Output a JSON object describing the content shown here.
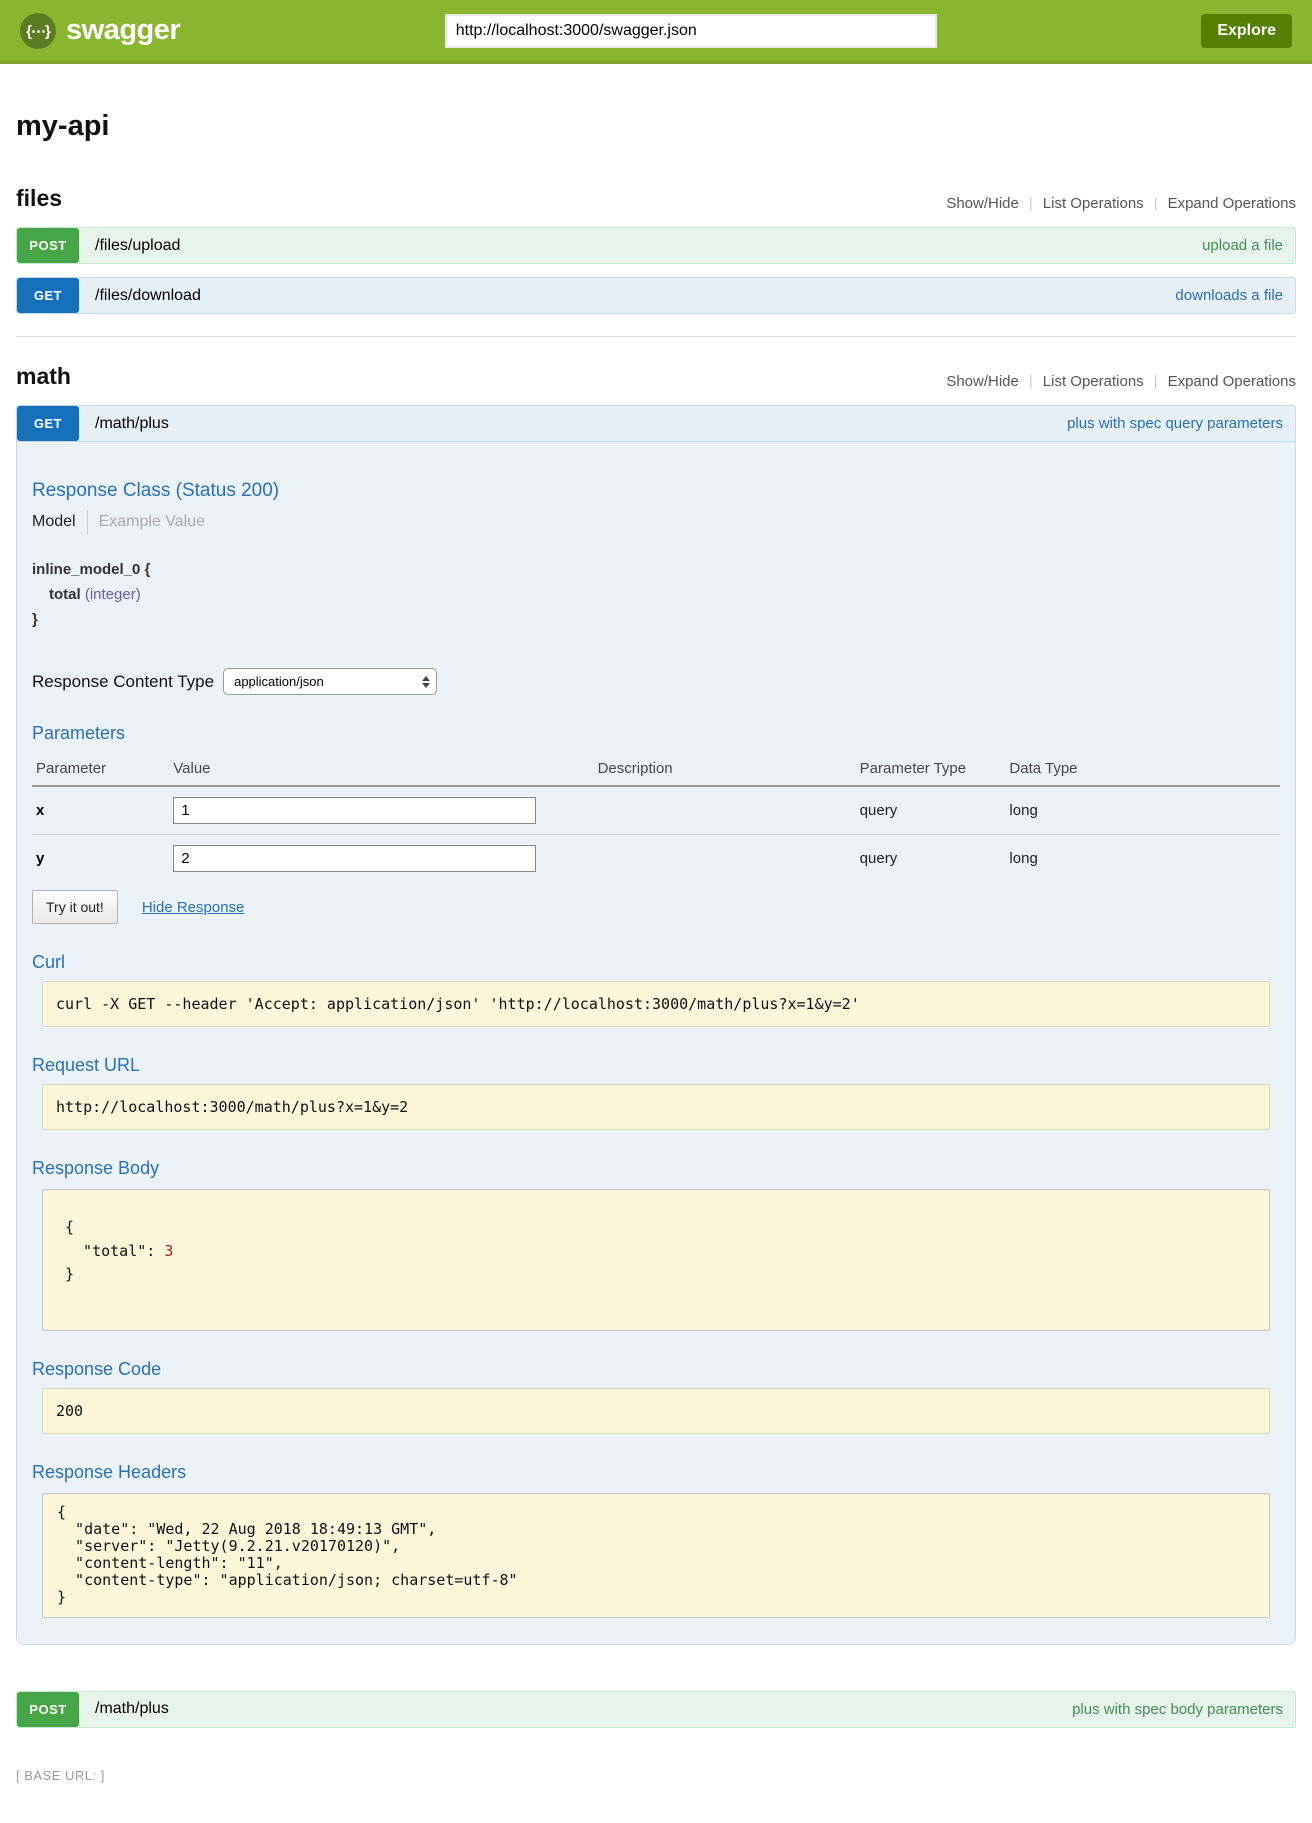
{
  "colors": {
    "header_green": "#8ab52e",
    "dark_green": "#547f00",
    "post_badge_green": "#46a546",
    "post_row_bg": "#e8f3eb",
    "post_link_green": "#428e5a",
    "get_badge_blue": "#1470b8",
    "get_row_bg": "#e7f0f7",
    "panel_bg": "#ebf3f9",
    "heading_blue": "#2a6fb8",
    "code_box_yellow": "#fcf6db",
    "number_literal_red": "#9d261d"
  },
  "icons": {
    "brand_logo": "curly-brace-ellipsis-icon",
    "content_type_select": "up-down-arrows-icon"
  },
  "header": {
    "brand": "swagger",
    "logo_glyph": "{⋯}",
    "url_input_value": "http://localhost:3000/swagger.json",
    "explore_label": "Explore"
  },
  "page": {
    "title": "my-api"
  },
  "section_controls": {
    "show_hide": "Show/Hide",
    "list_operations": "List Operations",
    "expand_operations": "Expand Operations"
  },
  "files_section": {
    "title": "files",
    "upload": {
      "method": "POST",
      "path": "/files/upload",
      "summary": "upload a file"
    },
    "download": {
      "method": "GET",
      "path": "/files/download",
      "summary": "downloads a file"
    }
  },
  "math_section": {
    "title": "math",
    "get_plus": {
      "method": "GET",
      "path": "/math/plus",
      "summary": "plus with spec query parameters",
      "response_class": {
        "heading": "Response Class (Status 200)",
        "tab_model": "Model",
        "tab_example": "Example Value",
        "model_open": "inline_model_0 {",
        "prop_name": "total",
        "prop_type": "(integer)",
        "model_close": "}"
      },
      "response_content_type": {
        "label": "Response Content Type",
        "value": "application/json"
      },
      "parameters": {
        "heading": "Parameters",
        "columns": [
          "Parameter",
          "Value",
          "Description",
          "Parameter Type",
          "Data Type"
        ],
        "rows": [
          {
            "name": "x",
            "value": "1",
            "description": "",
            "param_type": "query",
            "data_type": "long"
          },
          {
            "name": "y",
            "value": "2",
            "description": "",
            "param_type": "query",
            "data_type": "long"
          }
        ]
      },
      "try_it_out": "Try it out!",
      "hide_response": "Hide Response",
      "curl": {
        "heading": "Curl",
        "command": "curl -X GET --header 'Accept: application/json' 'http://localhost:3000/math/plus?x=1&y=2'"
      },
      "request_url": {
        "heading": "Request URL",
        "value": "http://localhost:3000/math/plus?x=1&y=2"
      },
      "response_body": {
        "heading": "Response Body",
        "open": "{",
        "key": "  \"total\": ",
        "value": "3",
        "close": "}"
      },
      "response_code": {
        "heading": "Response Code",
        "value": "200"
      },
      "response_headers": {
        "heading": "Response Headers",
        "lines": [
          "{",
          "  \"date\": \"Wed, 22 Aug 2018 18:49:13 GMT\",",
          "  \"server\": \"Jetty(9.2.21.v20170120)\",",
          "  \"content-length\": \"11\",",
          "  \"content-type\": \"application/json; charset=utf-8\"",
          "}"
        ]
      }
    },
    "post_plus": {
      "method": "POST",
      "path": "/math/plus",
      "summary": "plus with spec body parameters"
    }
  },
  "footer": {
    "base_url": "[ BASE URL: ]"
  }
}
